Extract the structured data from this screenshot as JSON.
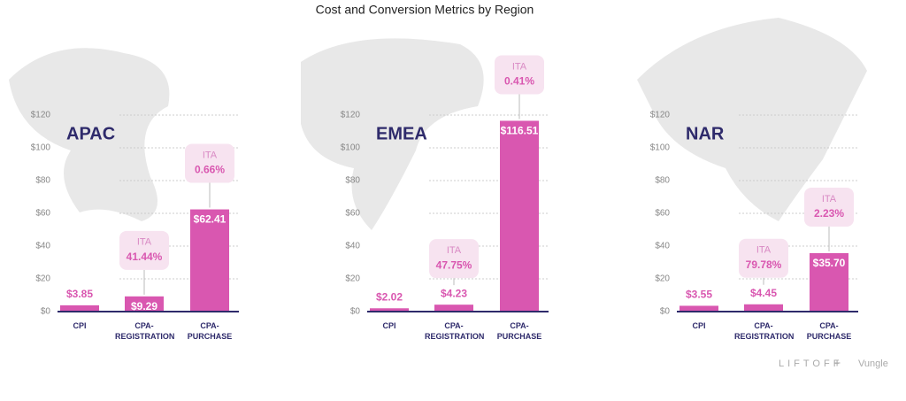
{
  "title": "Cost and Conversion Metrics by Region",
  "chart_data": [
    {
      "type": "bar",
      "title": "APAC",
      "categories": [
        "CPI",
        "CPA-REGISTRATION",
        "CPA-PURCHASE"
      ],
      "values": [
        3.85,
        9.29,
        62.41
      ],
      "value_labels": [
        "$3.85",
        "$9.29",
        "$62.41"
      ],
      "ita_label": "ITA",
      "ita_values": [
        null,
        41.44,
        0.66
      ],
      "ita_value_labels": [
        null,
        "41.44%",
        "0.66%"
      ],
      "color": "#d957b0",
      "ylim": [
        0,
        120
      ],
      "yticks": [
        {
          "value": 0,
          "label": "$0"
        },
        {
          "value": 20,
          "label": "$20"
        },
        {
          "value": 40,
          "label": "$40"
        },
        {
          "value": 60,
          "label": "$60"
        },
        {
          "value": 80,
          "label": "$80"
        },
        {
          "value": 100,
          "label": "$100"
        },
        {
          "value": 120,
          "label": "$120"
        }
      ],
      "grid": true
    },
    {
      "type": "bar",
      "title": "EMEA",
      "categories": [
        "CPI",
        "CPA-REGISTRATION",
        "CPA-PURCHASE"
      ],
      "values": [
        2.02,
        4.23,
        116.51
      ],
      "value_labels": [
        "$2.02",
        "$4.23",
        "$116.51"
      ],
      "ita_label": "ITA",
      "ita_values": [
        null,
        47.75,
        0.41
      ],
      "ita_value_labels": [
        null,
        "47.75%",
        "0.41%"
      ],
      "color": "#d957b0",
      "ylim": [
        0,
        120
      ],
      "yticks": [
        {
          "value": 0,
          "label": "$0"
        },
        {
          "value": 20,
          "label": "$20"
        },
        {
          "value": 40,
          "label": "$40"
        },
        {
          "value": 60,
          "label": "$60"
        },
        {
          "value": 80,
          "label": "$80"
        },
        {
          "value": 100,
          "label": "$100"
        },
        {
          "value": 120,
          "label": "$120"
        }
      ],
      "grid": true
    },
    {
      "type": "bar",
      "title": "NAR",
      "categories": [
        "CPI",
        "CPA-REGISTRATION",
        "CPA-PURCHASE"
      ],
      "values": [
        3.55,
        4.45,
        35.7
      ],
      "value_labels": [
        "$3.55",
        "$4.45",
        "$35.70"
      ],
      "ita_label": "ITA",
      "ita_values": [
        null,
        79.78,
        2.23
      ],
      "ita_value_labels": [
        null,
        "79.78%",
        "2.23%"
      ],
      "color": "#d957b0",
      "ylim": [
        0,
        120
      ],
      "yticks": [
        {
          "value": 0,
          "label": "$0"
        },
        {
          "value": 20,
          "label": "$20"
        },
        {
          "value": 40,
          "label": "$40"
        },
        {
          "value": 60,
          "label": "$60"
        },
        {
          "value": 80,
          "label": "$80"
        },
        {
          "value": 100,
          "label": "$100"
        },
        {
          "value": 120,
          "label": "$120"
        }
      ],
      "grid": true
    }
  ],
  "footer": {
    "brand": "LIFTOFF",
    "plus": "+",
    "partner": "Vungle"
  }
}
